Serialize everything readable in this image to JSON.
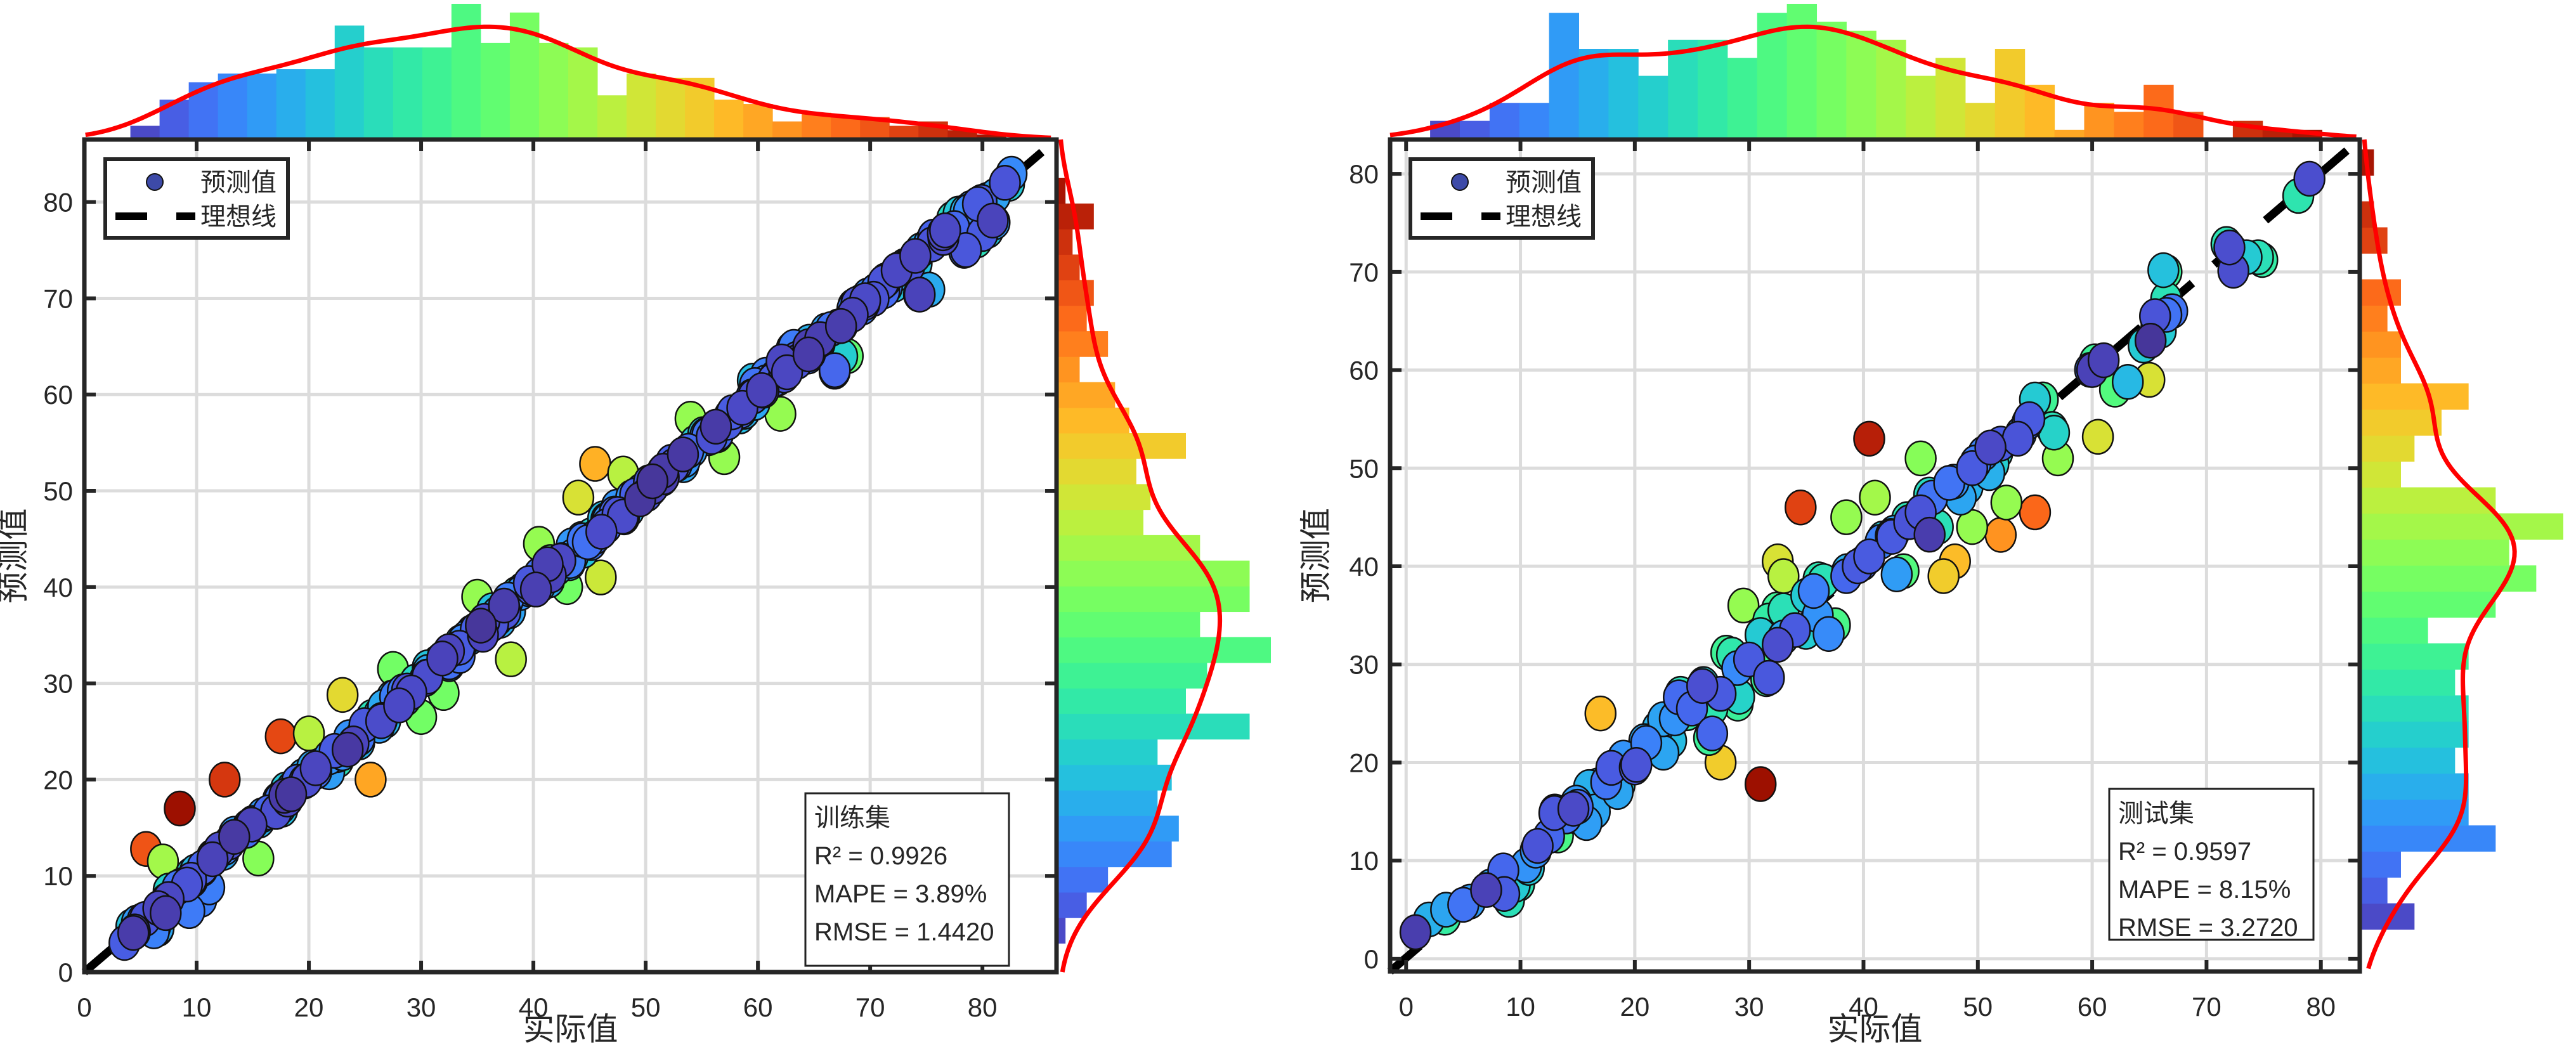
{
  "chart_data": [
    {
      "type": "scatter",
      "panel": "train",
      "title": "",
      "xlabel": "实际值",
      "ylabel": "预测值",
      "xlim": [
        0,
        86.6
      ],
      "ylim": [
        0,
        86.5
      ],
      "xticks": [
        0,
        10,
        20,
        30,
        40,
        50,
        60,
        70,
        80
      ],
      "yticks": [
        0,
        10,
        20,
        30,
        40,
        50,
        60,
        70,
        80
      ],
      "grid": true,
      "legend": {
        "position": "top-left",
        "entries": [
          "预测值",
          "理想线"
        ]
      },
      "stats_box": {
        "position": "bottom-right",
        "lines": [
          "训练集",
          "R² = 0.9926",
          "MAPE = 3.89%",
          "RMSE = 1.4420"
        ]
      },
      "ideal_line": {
        "from": [
          0,
          0
        ],
        "to": [
          86.6,
          86.5
        ],
        "style": "dashed",
        "color": "#000000"
      },
      "color_encoding": "absolute error (turbo colormap, blue = small, red = large)",
      "points_sample": [
        [
          4.5,
          4.2,
          0.05
        ],
        [
          5.2,
          5.4,
          0.06
        ],
        [
          6.2,
          4.5,
          0.35
        ],
        [
          7.1,
          6.0,
          0.4
        ],
        [
          7.5,
          7.6,
          0.03
        ],
        [
          8.3,
          8.8,
          0.1
        ],
        [
          9.5,
          9.6,
          0.05
        ],
        [
          10.5,
          10.7,
          0.08
        ],
        [
          11.4,
          12.0,
          0.2
        ],
        [
          12.5,
          12.9,
          0.12
        ],
        [
          13.5,
          14.2,
          0.2
        ],
        [
          15.0,
          15.5,
          0.12
        ],
        [
          16.4,
          16.6,
          0.08
        ],
        [
          17.5,
          17.2,
          0.15
        ],
        [
          18.5,
          19.1,
          0.2
        ],
        [
          19.6,
          19.8,
          0.05
        ],
        [
          20.4,
          21.0,
          0.22
        ],
        [
          21.8,
          22.3,
          0.15
        ],
        [
          22.6,
          22.0,
          0.3
        ],
        [
          23.5,
          24.0,
          0.15
        ],
        [
          24.5,
          24.3,
          0.1
        ],
        [
          25.6,
          26.5,
          0.3
        ],
        [
          26.5,
          26.2,
          0.1
        ],
        [
          27.8,
          28.5,
          0.3
        ],
        [
          28.6,
          28.4,
          0.08
        ],
        [
          29.5,
          30.2,
          0.28
        ],
        [
          30.5,
          30.7,
          0.08
        ],
        [
          31.5,
          32.2,
          0.25
        ],
        [
          32.5,
          32.0,
          0.2
        ],
        [
          33.4,
          33.7,
          0.06
        ],
        [
          34.5,
          35.3,
          0.3
        ],
        [
          35.5,
          35.1,
          0.15
        ],
        [
          36.4,
          37.2,
          0.3
        ],
        [
          37.5,
          37.4,
          0.05
        ],
        [
          38.5,
          39.3,
          0.3
        ],
        [
          39.5,
          39.8,
          0.12
        ],
        [
          40.6,
          40.2,
          0.18
        ],
        [
          41.5,
          42.6,
          0.4
        ],
        [
          42.5,
          42.8,
          0.12
        ],
        [
          43.5,
          43.2,
          0.15
        ],
        [
          44.3,
          45.0,
          0.3
        ],
        [
          45.5,
          45.2,
          0.1
        ],
        [
          46.5,
          47.0,
          0.2
        ],
        [
          47.5,
          47.6,
          0.05
        ],
        [
          48.5,
          48.0,
          0.2
        ],
        [
          49.6,
          50.0,
          0.15
        ],
        [
          50.5,
          50.2,
          0.1
        ],
        [
          51.5,
          52.0,
          0.2
        ],
        [
          52.5,
          52.6,
          0.05
        ],
        [
          53.5,
          53.2,
          0.15
        ],
        [
          54.4,
          55.0,
          0.25
        ],
        [
          55.5,
          55.8,
          0.1
        ],
        [
          56.5,
          56.2,
          0.12
        ],
        [
          57.5,
          57.8,
          0.1
        ],
        [
          58.5,
          58.3,
          0.08
        ],
        [
          59.6,
          59.8,
          0.05
        ],
        [
          60.5,
          60.4,
          0.04
        ],
        [
          61.5,
          61.8,
          0.1
        ],
        [
          62.5,
          63.0,
          0.2
        ],
        [
          63.5,
          63.4,
          0.05
        ],
        [
          64.5,
          65.0,
          0.2
        ],
        [
          65.5,
          65.3,
          0.08
        ],
        [
          66.5,
          66.8,
          0.1
        ],
        [
          67.5,
          67.2,
          0.15
        ],
        [
          68.5,
          69.2,
          0.3
        ],
        [
          69.5,
          69.5,
          0.04
        ],
        [
          70.5,
          70.8,
          0.1
        ],
        [
          71.5,
          71.2,
          0.12
        ],
        [
          72.5,
          73.0,
          0.2
        ],
        [
          73.5,
          73.4,
          0.05
        ],
        [
          74.5,
          75.0,
          0.2
        ],
        [
          75.5,
          75.6,
          0.05
        ],
        [
          76.5,
          76.8,
          0.1
        ],
        [
          77.5,
          77.3,
          0.08
        ],
        [
          78.5,
          79.0,
          0.2
        ],
        [
          79.6,
          79.8,
          0.06
        ],
        [
          82.0,
          82.0,
          0.05
        ],
        [
          5.5,
          12.8,
          0.85
        ],
        [
          8.5,
          17.0,
          1.0
        ],
        [
          12.5,
          20.0,
          0.9
        ],
        [
          17.5,
          24.5,
          0.87
        ],
        [
          25.5,
          20.0,
          0.72
        ],
        [
          45.5,
          52.8,
          0.7
        ],
        [
          44.0,
          49.3,
          0.6
        ],
        [
          46.0,
          41.0,
          0.58
        ],
        [
          38.0,
          32.5,
          0.55
        ],
        [
          32.0,
          29.0,
          0.45
        ],
        [
          68.0,
          64.0,
          0.42
        ],
        [
          75.0,
          71.0,
          0.42
        ],
        [
          79.5,
          76.0,
          0.3
        ],
        [
          80.0,
          77.0,
          0.3
        ],
        [
          63.0,
          64.5,
          0.2
        ],
        [
          23.0,
          28.8,
          0.62
        ],
        [
          27.5,
          31.5,
          0.45
        ],
        [
          20.0,
          24.8,
          0.55
        ],
        [
          40.5,
          44.5,
          0.5
        ],
        [
          48.0,
          51.8,
          0.55
        ],
        [
          15.5,
          11.8,
          0.48
        ],
        [
          10.0,
          7.3,
          0.4
        ],
        [
          7.0,
          11.5,
          0.52
        ],
        [
          30.0,
          26.5,
          0.45
        ],
        [
          35.0,
          39.0,
          0.5
        ],
        [
          57.0,
          53.5,
          0.5
        ],
        [
          62.0,
          58.0,
          0.5
        ],
        [
          54.0,
          57.5,
          0.5
        ],
        [
          60.0,
          61.5,
          0.3
        ],
        [
          43.0,
          40.0,
          0.45
        ]
      ],
      "top_histogram": {
        "bin_start": 4.1,
        "bin_width": 2.6,
        "counts": [
          3,
          9,
          13,
          15,
          15,
          16,
          16,
          26,
          21,
          21,
          21,
          31,
          22,
          29,
          22,
          21,
          10,
          15,
          14,
          14,
          9,
          8,
          4,
          6,
          5,
          5,
          3,
          4,
          2,
          1
        ],
        "kde": true
      },
      "right_histogram": {
        "bin_start": 3.0,
        "bin_width": 2.65,
        "counts": [
          1,
          4,
          7,
          16,
          17,
          14,
          16,
          14,
          27,
          18,
          21,
          30,
          20,
          27,
          27,
          20,
          12,
          13,
          11,
          18,
          10,
          8,
          3,
          7,
          4,
          5,
          3,
          2,
          5,
          1
        ],
        "kde": true
      }
    },
    {
      "type": "scatter",
      "panel": "test",
      "title": "",
      "xlabel": "实际值",
      "ylabel": "预测值",
      "xlim": [
        -1.4,
        83.4
      ],
      "ylim": [
        -1.3,
        83.5
      ],
      "xticks": [
        0,
        10,
        20,
        30,
        40,
        50,
        60,
        70,
        80
      ],
      "yticks": [
        0,
        10,
        20,
        30,
        40,
        50,
        60,
        70,
        80
      ],
      "grid": true,
      "legend": {
        "position": "top-left",
        "entries": [
          "预测值",
          "理想线"
        ]
      },
      "stats_box": {
        "position": "bottom-right",
        "lines": [
          "测试集",
          "R² = 0.9597",
          "MAPE = 8.15%",
          "RMSE = 3.2720"
        ]
      },
      "ideal_line": {
        "from": [
          -1.4,
          -1.3
        ],
        "to": [
          83.4,
          83.5
        ],
        "style": "dashed",
        "color": "#000000"
      },
      "color_encoding": "absolute error (turbo colormap, blue = small, red = large)",
      "points_sample": [
        [
          2.0,
          4.0,
          0.2
        ],
        [
          3.5,
          5.0,
          0.18
        ],
        [
          5.0,
          5.5,
          0.1
        ],
        [
          7.0,
          7.0,
          0.02
        ],
        [
          8.5,
          9.0,
          0.08
        ],
        [
          9.0,
          6.0,
          0.3
        ],
        [
          9.5,
          7.5,
          0.25
        ],
        [
          10.5,
          9.5,
          0.15
        ],
        [
          11.5,
          11.5,
          0.05
        ],
        [
          12.5,
          12.5,
          0.08
        ],
        [
          13.0,
          15.0,
          0.2
        ],
        [
          14.0,
          14.5,
          0.1
        ],
        [
          15.0,
          15.5,
          0.08
        ],
        [
          16.0,
          17.5,
          0.2
        ],
        [
          16.5,
          15.0,
          0.18
        ],
        [
          17.5,
          18.0,
          0.1
        ],
        [
          18.5,
          17.0,
          0.18
        ],
        [
          19.0,
          20.5,
          0.15
        ],
        [
          20.0,
          19.5,
          0.06
        ],
        [
          21.0,
          22.0,
          0.12
        ],
        [
          22.0,
          23.5,
          0.2
        ],
        [
          22.5,
          21.0,
          0.18
        ],
        [
          23.5,
          24.5,
          0.15
        ],
        [
          24.0,
          27.0,
          0.3
        ],
        [
          25.0,
          25.5,
          0.08
        ],
        [
          26.0,
          28.0,
          0.25
        ],
        [
          26.5,
          22.5,
          0.35
        ],
        [
          27.5,
          27.0,
          0.06
        ],
        [
          28.5,
          31.0,
          0.32
        ],
        [
          29.0,
          26.0,
          0.35
        ],
        [
          30.0,
          30.5,
          0.06
        ],
        [
          31.0,
          33.0,
          0.25
        ],
        [
          31.5,
          28.5,
          0.35
        ],
        [
          32.5,
          32.0,
          0.04
        ],
        [
          33.0,
          35.5,
          0.3
        ],
        [
          34.0,
          33.5,
          0.06
        ],
        [
          35.0,
          37.0,
          0.25
        ],
        [
          36.0,
          35.0,
          0.15
        ],
        [
          36.5,
          38.5,
          0.3
        ],
        [
          37.5,
          34.0,
          0.38
        ],
        [
          38.5,
          39.0,
          0.08
        ],
        [
          39.5,
          40.0,
          0.06
        ],
        [
          40.5,
          41.0,
          0.06
        ],
        [
          41.5,
          42.5,
          0.12
        ],
        [
          42.5,
          43.0,
          0.06
        ],
        [
          43.5,
          39.5,
          0.4
        ],
        [
          44.0,
          44.5,
          0.05
        ],
        [
          45.0,
          45.5,
          0.05
        ],
        [
          46.0,
          47.0,
          0.1
        ],
        [
          46.5,
          44.0,
          0.3
        ],
        [
          47.5,
          48.5,
          0.1
        ],
        [
          48.5,
          47.0,
          0.18
        ],
        [
          49.5,
          50.0,
          0.06
        ],
        [
          50.5,
          51.5,
          0.12
        ],
        [
          51.0,
          49.5,
          0.2
        ],
        [
          52.0,
          52.5,
          0.06
        ],
        [
          53.5,
          53.0,
          0.05
        ],
        [
          54.5,
          55.0,
          0.06
        ],
        [
          55.0,
          57.0,
          0.25
        ],
        [
          56.5,
          54.0,
          0.3
        ],
        [
          60.0,
          60.0,
          0.02
        ],
        [
          61.0,
          61.0,
          0.02
        ],
        [
          62.0,
          58.0,
          0.4
        ],
        [
          64.5,
          62.5,
          0.25
        ],
        [
          65.5,
          65.5,
          0.05
        ],
        [
          66.0,
          64.0,
          0.25
        ],
        [
          66.5,
          70.0,
          0.35
        ],
        [
          67.0,
          66.0,
          0.1
        ],
        [
          72.0,
          72.5,
          0.04
        ],
        [
          73.5,
          71.5,
          0.25
        ],
        [
          74.5,
          71.5,
          0.3
        ],
        [
          79.0,
          79.5,
          0.04
        ],
        [
          17.0,
          25.0,
          0.68
        ],
        [
          27.5,
          20.0,
          0.65
        ],
        [
          31.0,
          17.8,
          1.0
        ],
        [
          34.5,
          46.0,
          0.88
        ],
        [
          40.5,
          53.0,
          0.95
        ],
        [
          47.0,
          39.0,
          0.65
        ],
        [
          48.0,
          40.5,
          0.68
        ],
        [
          52.0,
          43.2,
          0.75
        ],
        [
          55.0,
          45.5,
          0.82
        ],
        [
          60.5,
          53.2,
          0.6
        ],
        [
          65.0,
          59.0,
          0.6
        ],
        [
          41.0,
          47.0,
          0.52
        ],
        [
          45.0,
          51.0,
          0.48
        ],
        [
          49.5,
          44.0,
          0.5
        ],
        [
          52.5,
          46.5,
          0.5
        ],
        [
          29.5,
          36.0,
          0.5
        ],
        [
          32.5,
          40.5,
          0.6
        ],
        [
          33.0,
          39.0,
          0.55
        ],
        [
          38.5,
          45.0,
          0.5
        ],
        [
          57.0,
          51.0,
          0.5
        ]
      ],
      "top_histogram": {
        "bin_start": 2.1,
        "bin_width": 2.6,
        "counts": [
          2,
          2,
          4,
          4,
          14,
          10,
          10,
          7,
          11,
          11,
          9,
          14,
          15,
          13,
          12,
          11,
          7,
          9,
          4,
          10,
          6,
          1,
          4,
          3,
          6,
          3,
          0,
          2,
          1,
          1
        ],
        "kde": true
      },
      "right_histogram": {
        "bin_start": 3.0,
        "bin_width": 2.65,
        "counts": [
          4,
          2,
          3,
          10,
          8,
          8,
          7,
          8,
          8,
          7,
          8,
          5,
          10,
          13,
          11,
          15,
          10,
          3,
          4,
          6,
          8,
          3,
          3,
          2,
          3,
          0,
          2,
          1,
          0,
          1
        ],
        "kde": true
      }
    }
  ],
  "colors": {
    "axis": "#262626",
    "grid": "#dcdcdc",
    "kde": "#ff0000",
    "ideal_line": "#000000",
    "legend_marker": "#3d4aa8"
  }
}
